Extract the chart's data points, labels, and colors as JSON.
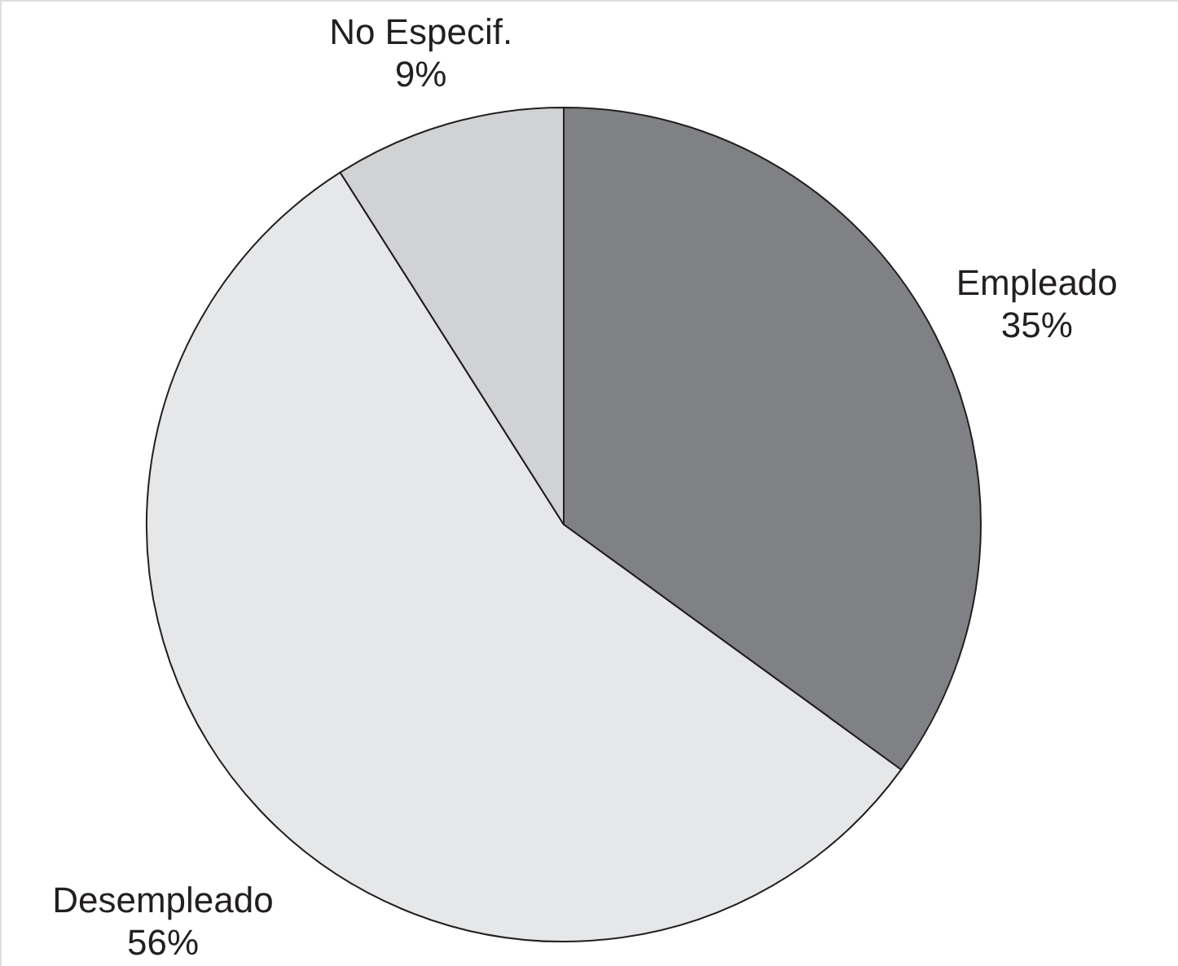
{
  "chart_data": {
    "type": "pie",
    "categories": [
      "Empleado",
      "Desempleado",
      "No Especif."
    ],
    "values": [
      35,
      56,
      9
    ],
    "colors": [
      "#808184",
      "#e6e7e8",
      "#d1d2d4"
    ],
    "value_labels": [
      "35%",
      "56%",
      "9%"
    ]
  }
}
